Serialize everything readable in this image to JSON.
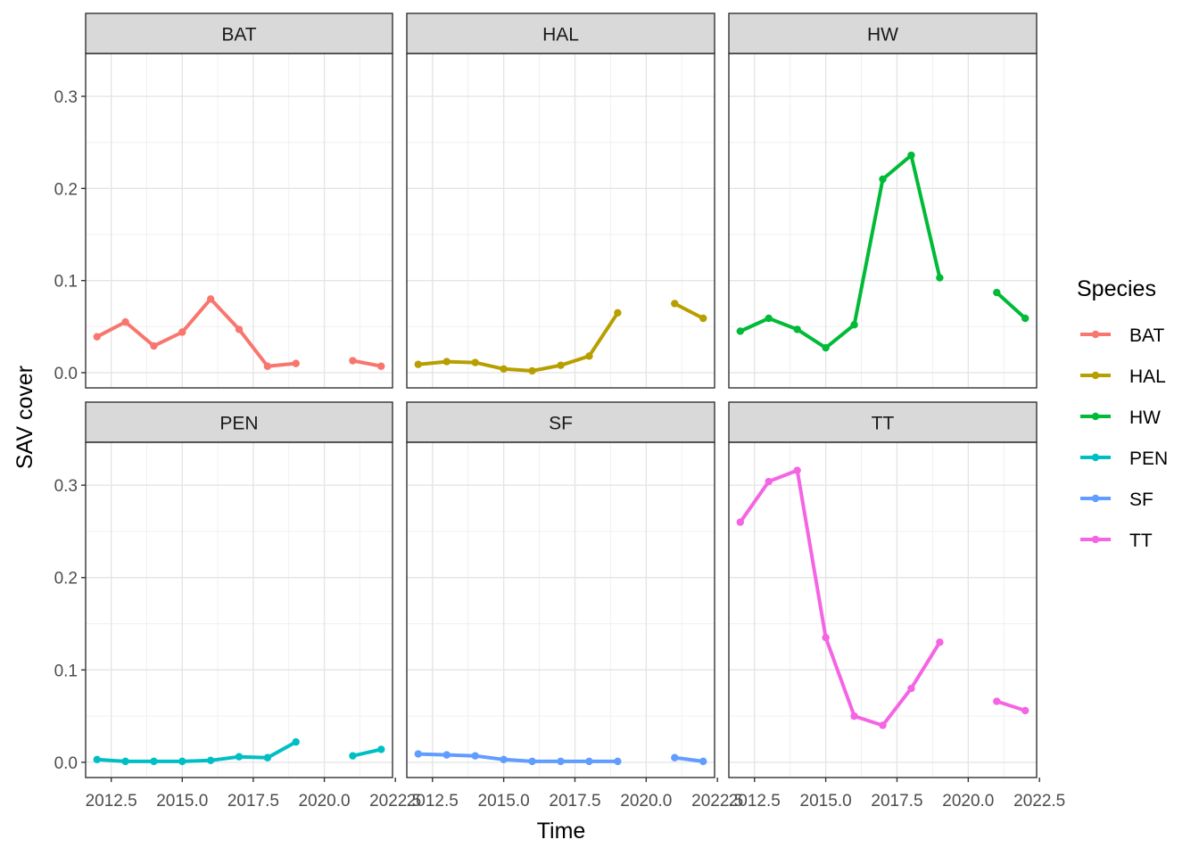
{
  "chart_data": {
    "type": "line",
    "layout": "facet_wrap",
    "xlabel": "Time",
    "ylabel": "SAV cover",
    "xlim": [
      2011.6,
      2022.4
    ],
    "ylim": [
      -0.0165,
      0.3465
    ],
    "x_ticks": [
      2012.5,
      2015.0,
      2017.5,
      2020.0,
      2022.5
    ],
    "x_tick_labels": [
      "2012.5",
      "2015.0",
      "2017.5",
      "2020.0",
      "2022.5"
    ],
    "y_ticks": [
      0.0,
      0.1,
      0.2,
      0.3
    ],
    "y_tick_labels": [
      "0.0",
      "0.1",
      "0.2",
      "0.3"
    ],
    "grid": true,
    "legend": {
      "title": "Species",
      "position": "right",
      "entries": [
        "BAT",
        "HAL",
        "HW",
        "PEN",
        "SF",
        "TT"
      ]
    },
    "panels": [
      {
        "name": "BAT",
        "color": "#F8766D",
        "segments": [
          [
            [
              2012,
              0.039
            ],
            [
              2013,
              0.055
            ],
            [
              2014,
              0.029
            ],
            [
              2015,
              0.044
            ],
            [
              2016,
              0.08
            ],
            [
              2017,
              0.047
            ],
            [
              2018,
              0.007
            ],
            [
              2019,
              0.01
            ]
          ],
          [
            [
              2021,
              0.013
            ],
            [
              2022,
              0.007
            ]
          ]
        ]
      },
      {
        "name": "HAL",
        "color": "#B79F00",
        "segments": [
          [
            [
              2012,
              0.009
            ],
            [
              2013,
              0.012
            ],
            [
              2014,
              0.011
            ],
            [
              2015,
              0.004
            ],
            [
              2016,
              0.002
            ],
            [
              2017,
              0.008
            ],
            [
              2018,
              0.018
            ],
            [
              2019,
              0.065
            ]
          ],
          [
            [
              2021,
              0.075
            ],
            [
              2022,
              0.059
            ]
          ]
        ]
      },
      {
        "name": "HW",
        "color": "#00BA38",
        "segments": [
          [
            [
              2012,
              0.045
            ],
            [
              2013,
              0.059
            ],
            [
              2014,
              0.047
            ],
            [
              2015,
              0.027
            ],
            [
              2016,
              0.052
            ],
            [
              2017,
              0.21
            ],
            [
              2018,
              0.236
            ],
            [
              2019,
              0.103
            ]
          ],
          [
            [
              2021,
              0.087
            ],
            [
              2022,
              0.059
            ]
          ]
        ]
      },
      {
        "name": "PEN",
        "color": "#00BFC4",
        "segments": [
          [
            [
              2012,
              0.003
            ],
            [
              2013,
              0.001
            ],
            [
              2014,
              0.001
            ],
            [
              2015,
              0.001
            ],
            [
              2016,
              0.002
            ],
            [
              2017,
              0.006
            ],
            [
              2018,
              0.005
            ],
            [
              2019,
              0.022
            ]
          ],
          [
            [
              2021,
              0.007
            ],
            [
              2022,
              0.014
            ]
          ]
        ]
      },
      {
        "name": "SF",
        "color": "#619CFF",
        "segments": [
          [
            [
              2012,
              0.009
            ],
            [
              2013,
              0.008
            ],
            [
              2014,
              0.007
            ],
            [
              2015,
              0.003
            ],
            [
              2016,
              0.001
            ],
            [
              2017,
              0.001
            ],
            [
              2018,
              0.001
            ],
            [
              2019,
              0.001
            ]
          ],
          [
            [
              2021,
              0.005
            ],
            [
              2022,
              0.001
            ]
          ]
        ]
      },
      {
        "name": "TT",
        "color": "#F564E3",
        "segments": [
          [
            [
              2012,
              0.26
            ],
            [
              2013,
              0.304
            ],
            [
              2014,
              0.316
            ],
            [
              2015,
              0.135
            ],
            [
              2016,
              0.05
            ],
            [
              2017,
              0.04
            ],
            [
              2018,
              0.08
            ],
            [
              2019,
              0.13
            ]
          ],
          [
            [
              2021,
              0.066
            ],
            [
              2022,
              0.056
            ]
          ]
        ]
      }
    ]
  }
}
